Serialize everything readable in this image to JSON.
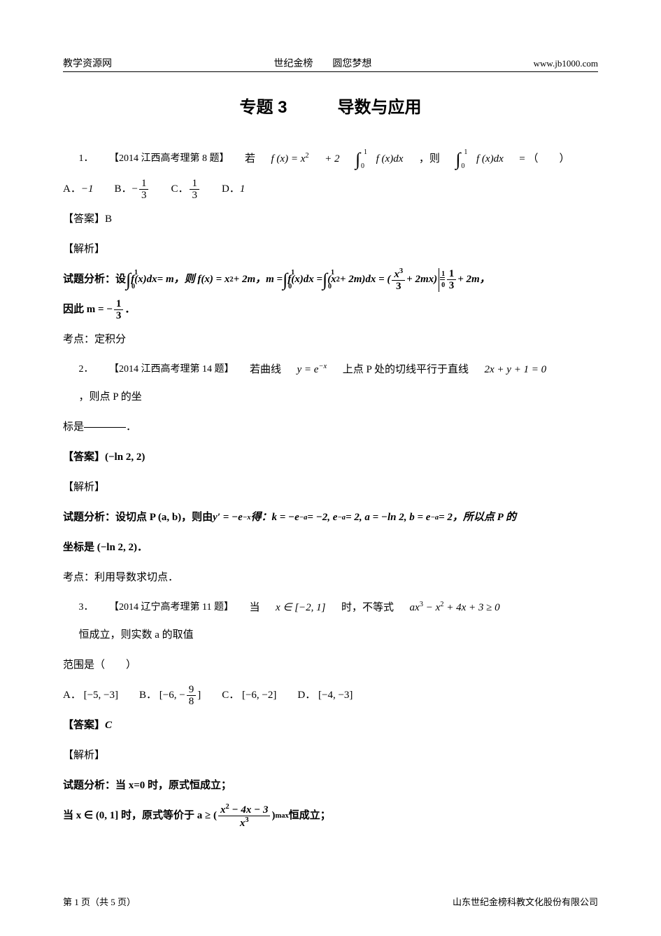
{
  "header": {
    "left": "教学资源网",
    "center": "世纪金榜　　圆您梦想",
    "right": "www.jb1000.com"
  },
  "title": "专题 3　　　导数与应用",
  "q1": {
    "prefix": "1．",
    "tag": "【2014 江西高考理第 8 题】",
    "stem1": "若 ",
    "fx": "f (x) = x",
    "stem2": " + 2",
    "int_u": "1",
    "int_l": "0",
    "fxdx": "f (x)dx",
    "stem3": "，则",
    "eq": " = （　　）",
    "optA_label": "A．",
    "optA": "−1",
    "optB_label": "B．",
    "optC_label": "C．",
    "optD_label": "D．",
    "optD": "1",
    "ans_label": "【答案】",
    "ans": "B",
    "sol_label": "【解析】",
    "sol1_a": "试题分析：设",
    "sol1_b": "= m，则  f(x) = x",
    "sol1_c": " + 2m，m = ",
    "sol1_d": "(x",
    "sol1_e": " + 2m)dx = (",
    "sol1_f": " + 2mx)",
    "sol1_g": " = ",
    "sol1_h": " + 2m，",
    "sol2_a": "因此 m = −",
    "sol2_b": "．",
    "kaodian": "考点：定积分"
  },
  "q2": {
    "prefix": "2．",
    "tag": "【2014 江西高考理第 14 题】",
    "stem1": "若曲线 ",
    "y_eq": "y = e",
    "stem2": " 上点 P 处的切线平行于直线 ",
    "line_eq": "2x + y + 1 = 0",
    "stem3": "，则点 P 的坐",
    "cont": "标是",
    "period": "．",
    "ans_label": "【答案】",
    "ans": "(−ln 2, 2)",
    "sol_label": "【解析】",
    "sol1_a": "试题分析：设切点 P (a, b)，则由 ",
    "sol1_b": "y′ = −e",
    "sol1_c": " 得：k = −e",
    "sol1_d": " = −2, e",
    "sol1_e": " = 2, a = −ln 2, b = e",
    "sol1_f": " = 2，所以点 P 的",
    "sol2": "坐标是 (−ln 2, 2)．",
    "kaodian": "考点：利用导数求切点．"
  },
  "q3": {
    "prefix": "3．",
    "tag": "【2014 辽宁高考理第 11 题】",
    "stem1": "当 ",
    "x_in": "x ∈ [−2, 1]",
    "stem2": " 时，不等式 ",
    "ineq": "ax",
    "ineq2": " − x",
    "ineq3": " + 4x + 3 ≥ 0",
    "stem3": " 恒成立，则实数 a 的取值",
    "cont": "范围是（　　）",
    "optA_label": "A．",
    "optA": "[−5, −3]",
    "optB_label": "B．",
    "optB1": "[−6, −",
    "optB2": "]",
    "optC_label": "C．",
    "optC": "[−6, −2]",
    "optD_label": "D．",
    "optD": "[−4, −3]",
    "ans_label": "【答案】",
    "ans": "C",
    "sol_label": "【解析】",
    "sol1": "试题分析：当 x=0 时，原式恒成立；",
    "sol2_a": "当 x ∈ (0, 1] 时，原式等价于 a ≥ (",
    "sol2_num": "x",
    "sol2_num2": " − 4x − 3",
    "sol2_den": "x",
    "sol2_b": ")",
    "sol2_sub": "max",
    "sol2_c": " 恒成立；"
  },
  "footer": {
    "left": "第 1 页（共 5 页）",
    "right": "山东世纪金榜科教文化股份有限公司"
  },
  "frac": {
    "one": "1",
    "three": "3",
    "nine": "9",
    "eight": "8"
  }
}
